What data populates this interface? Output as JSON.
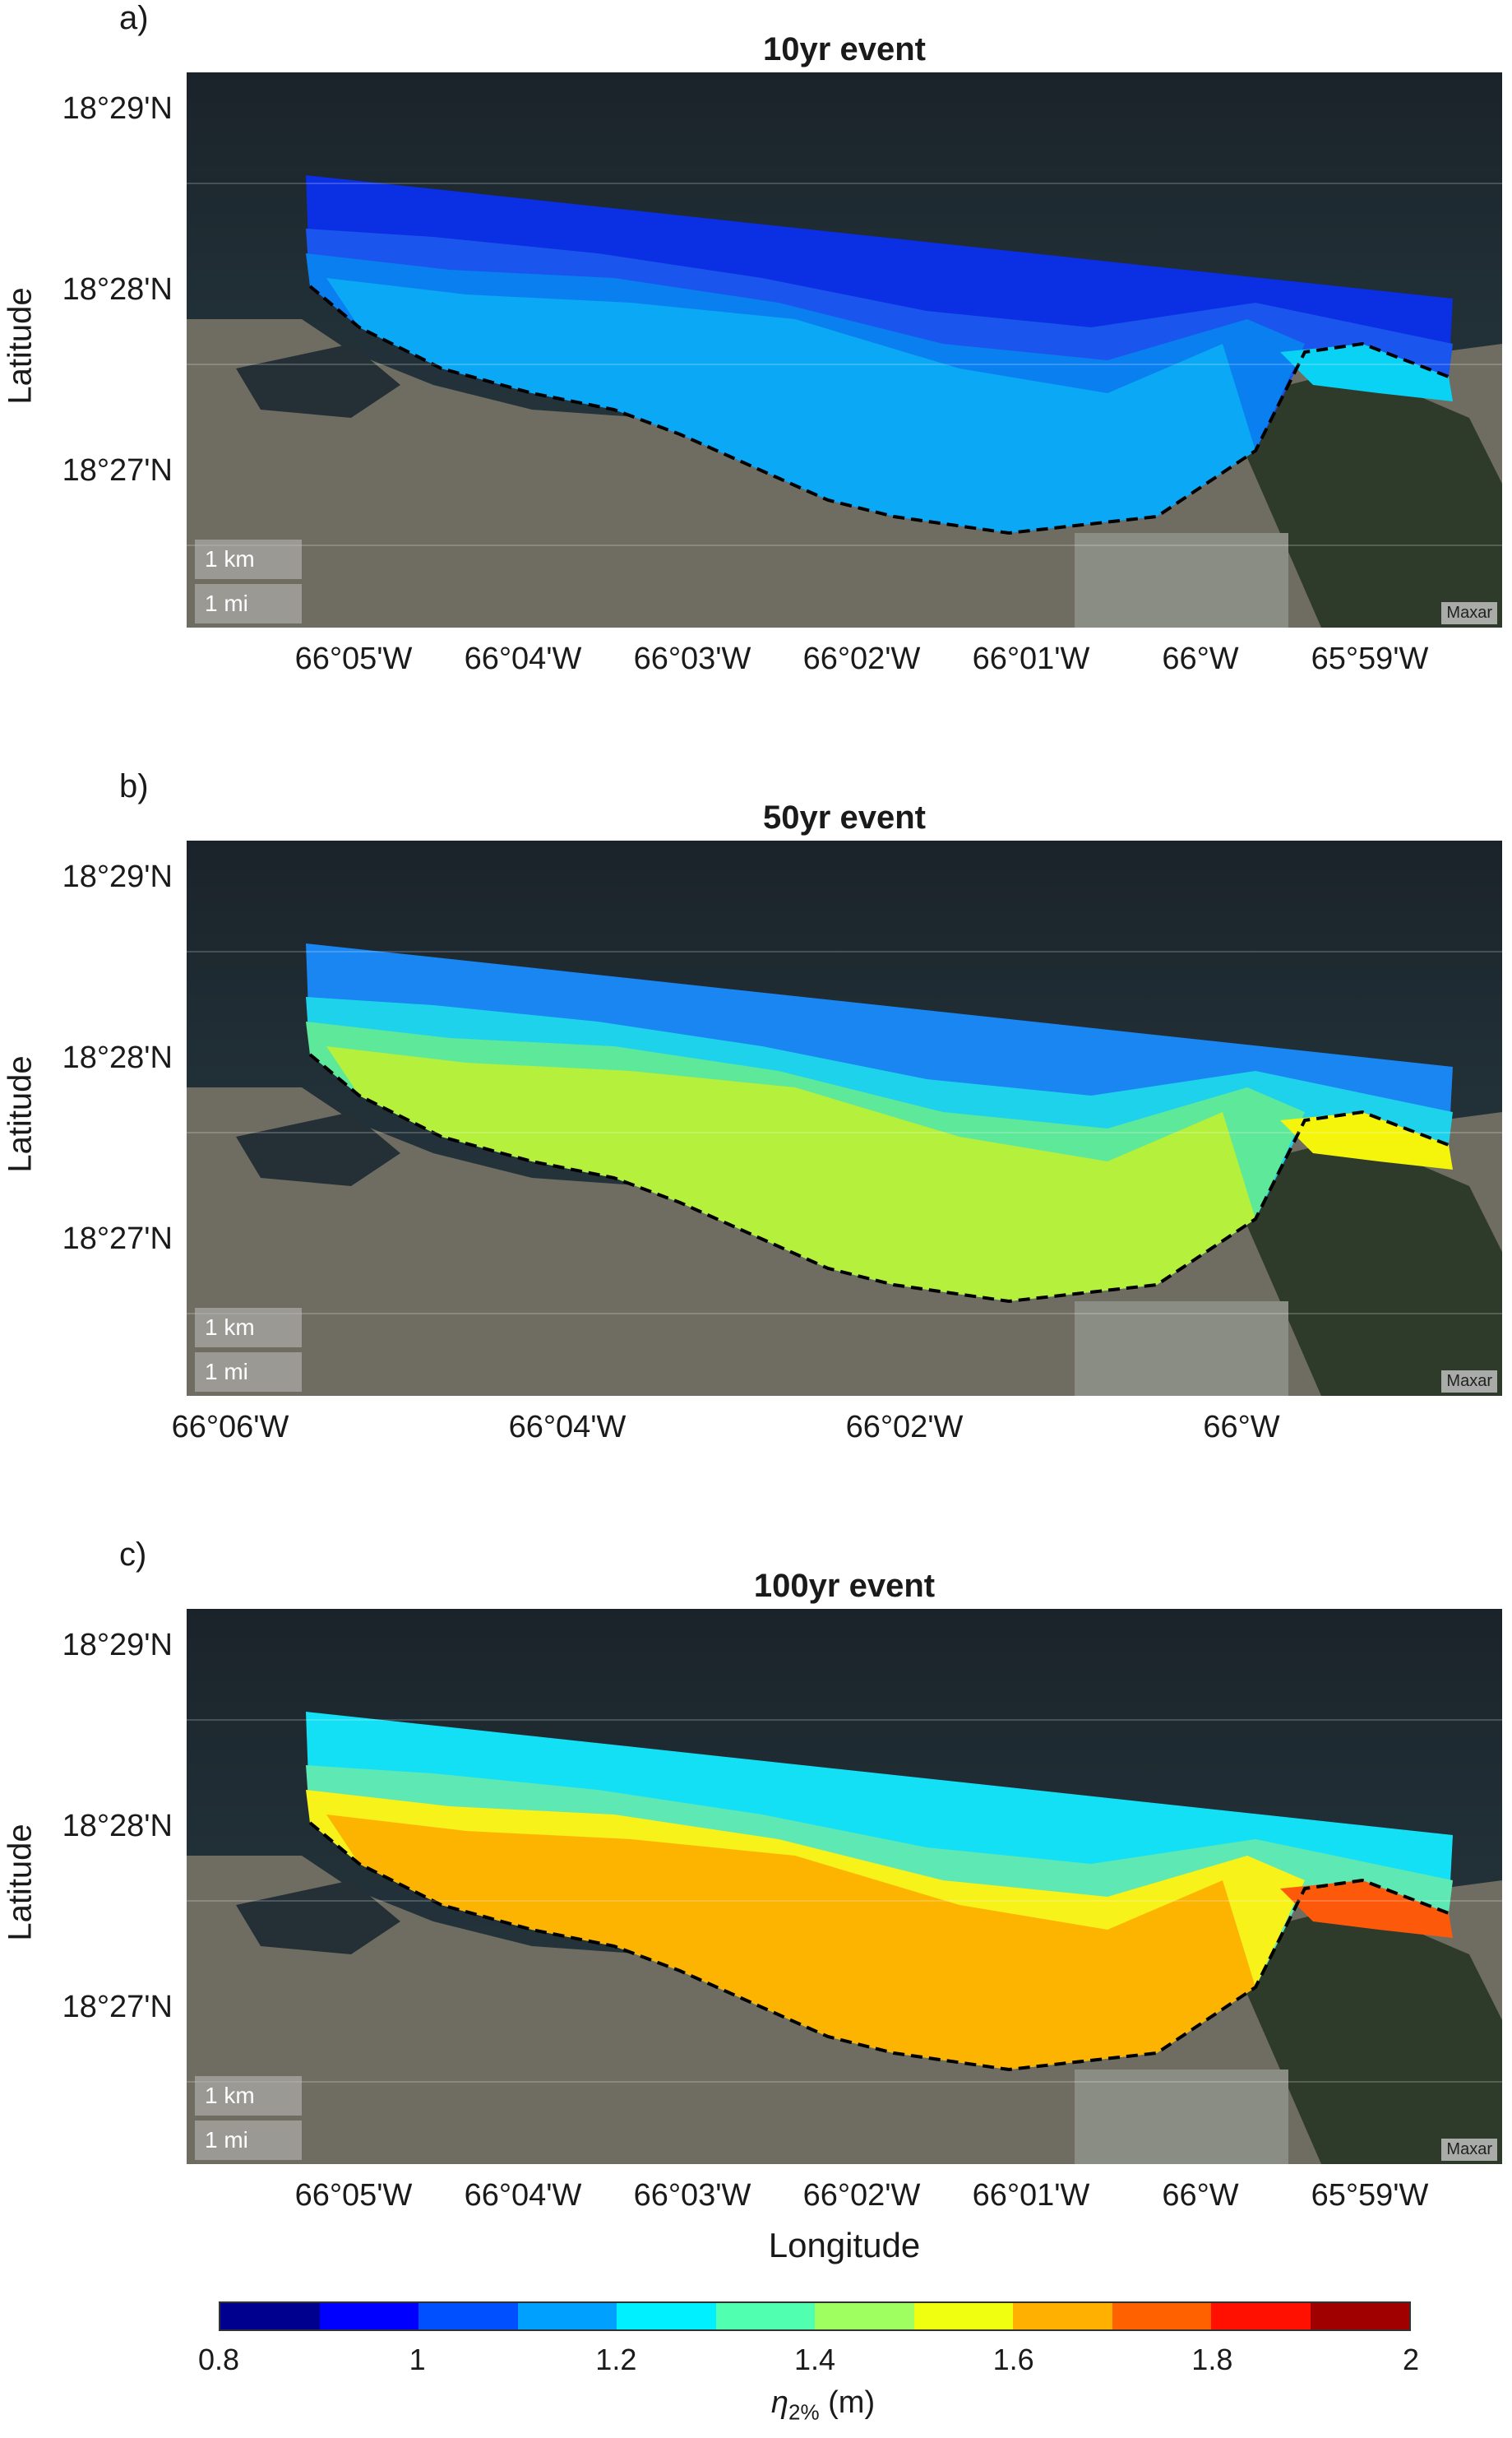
{
  "panels": [
    {
      "letter": "a)",
      "title": "10yr event",
      "sea": "#0aa8f5",
      "mid": "#0a7ff0",
      "near": "#1a55ee",
      "far": "#0b2fe3",
      "coast": "#0ad2f5",
      "yticks": [
        "18°29'N",
        "18°28'N",
        "18°27'N"
      ],
      "xticks": [
        "66°05'W",
        "66°04'W",
        "66°03'W",
        "66°02'W",
        "66°01'W",
        "66°W",
        "65°59'W"
      ]
    },
    {
      "letter": "b)",
      "title": "50yr event",
      "sea": "#b4f03c",
      "mid": "#5ee89a",
      "near": "#1fd2ec",
      "far": "#1a86f2",
      "coast": "#f4f50a",
      "yticks": [
        "18°29'N",
        "18°28'N",
        "18°27'N"
      ],
      "xticks": [
        "66°06'W",
        "66°04'W",
        "66°02'W",
        "66°W"
      ]
    },
    {
      "letter": "c)",
      "title": "100yr event",
      "sea": "#fdb400",
      "mid": "#f7f21a",
      "near": "#5ee8b4",
      "far": "#14e0f5",
      "coast": "#fc5a0a",
      "yticks": [
        "18°29'N",
        "18°28'N",
        "18°27'N"
      ],
      "xticks": [
        "66°05'W",
        "66°04'W",
        "66°03'W",
        "66°02'W",
        "66°01'W",
        "66°W",
        "65°59'W"
      ]
    }
  ],
  "scale_km": "1 km",
  "scale_mi": "1 mi",
  "attribution": "Maxar",
  "ylabel": "Latitude",
  "xlabel": "Longitude",
  "colorbar": {
    "colors": [
      "#00008f",
      "#0000ff",
      "#0050ff",
      "#00a0ff",
      "#00f0ff",
      "#50ffaf",
      "#a0ff60",
      "#f0ff10",
      "#ffb000",
      "#ff6000",
      "#ff1000",
      "#a00000"
    ],
    "ticks": [
      "0.8",
      "1",
      "1.2",
      "1.4",
      "1.6",
      "1.8",
      "2"
    ],
    "label_symbol": "η",
    "label_sub": "2%",
    "label_unit": "(m)"
  }
}
